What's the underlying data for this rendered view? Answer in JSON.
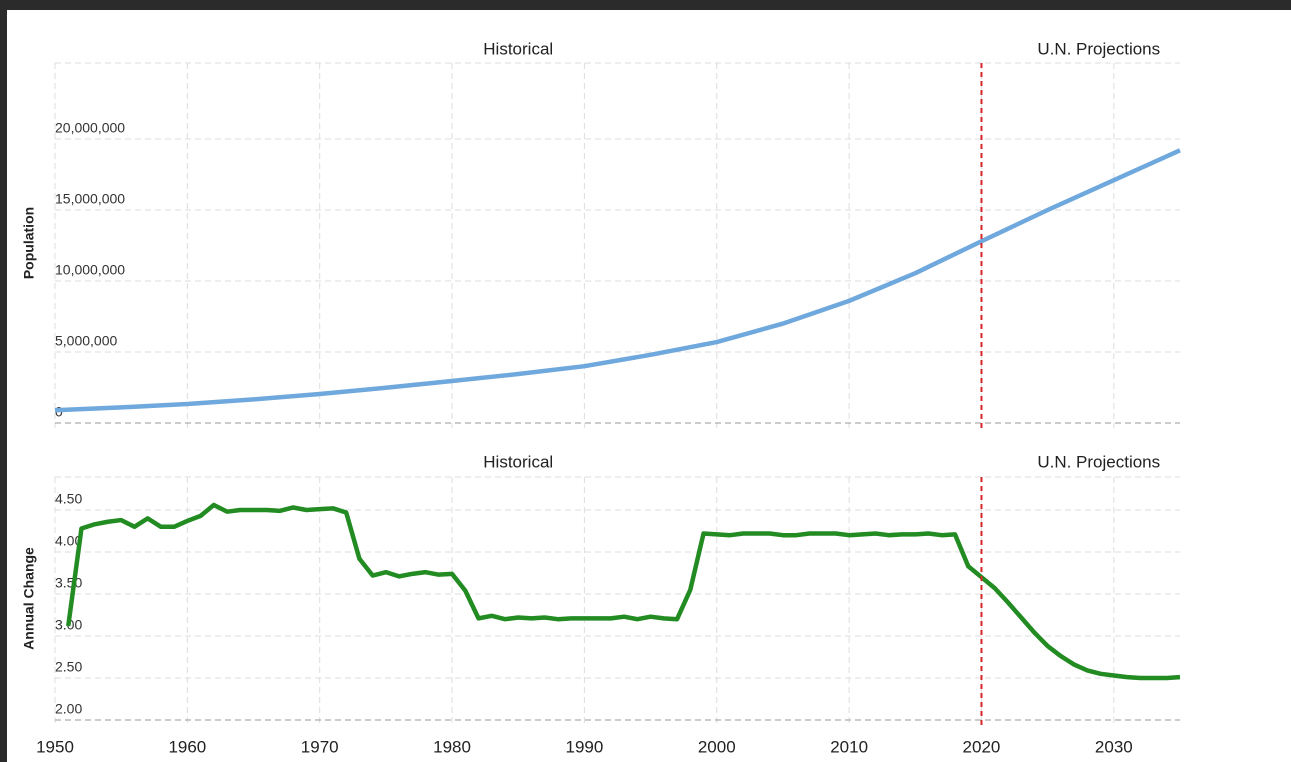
{
  "chart_data": [
    {
      "type": "line",
      "y_label": "Population",
      "annotations": [
        "Historical",
        "U.N. Projections"
      ],
      "divider": 2020,
      "divider_color": "#d62728",
      "x": [
        1950,
        1955,
        1960,
        1965,
        1970,
        1975,
        1980,
        1985,
        1990,
        1995,
        2000,
        2005,
        2010,
        2015,
        2020,
        2025,
        2030,
        2035
      ],
      "series": [
        {
          "name": "Population",
          "color": "#6fa8dc",
          "values": [
            900000,
            1100000,
            1340000,
            1660000,
            2040000,
            2480000,
            2960000,
            3450000,
            4000000,
            4800000,
            5700000,
            7000000,
            8600000,
            10550000,
            12800000,
            15000000,
            17100000,
            19200000
          ]
        }
      ],
      "xlim": [
        1950,
        2035
      ],
      "xticks": [
        1950,
        1960,
        1970,
        1980,
        1990,
        2000,
        2010,
        2020,
        2030
      ],
      "ylim": [
        0,
        25000000
      ],
      "yticks": [
        0,
        {
          "value": 5000000,
          "label": "5,000,000"
        },
        {
          "value": 10000000,
          "label": "10,000,000"
        },
        {
          "value": 15000000,
          "label": "15,000,000"
        },
        {
          "value": 20000000,
          "label": "20,000,000"
        }
      ],
      "grid": true
    },
    {
      "type": "line",
      "y_label": "Annual Change",
      "annotations": [
        "Historical",
        "U.N. Projections"
      ],
      "divider": 2020,
      "divider_color": "#d62728",
      "x": [
        1951,
        1952,
        1953,
        1954,
        1955,
        1956,
        1957,
        1958,
        1959,
        1960,
        1961,
        1962,
        1963,
        1964,
        1965,
        1966,
        1967,
        1968,
        1969,
        1970,
        1971,
        1972,
        1973,
        1974,
        1975,
        1976,
        1977,
        1978,
        1979,
        1980,
        1981,
        1982,
        1983,
        1984,
        1985,
        1986,
        1987,
        1988,
        1989,
        1990,
        1991,
        1992,
        1993,
        1994,
        1995,
        1996,
        1997,
        1998,
        1999,
        2000,
        2001,
        2002,
        2003,
        2004,
        2005,
        2006,
        2007,
        2008,
        2009,
        2010,
        2011,
        2012,
        2013,
        2014,
        2015,
        2016,
        2017,
        2018,
        2019,
        2020,
        2021,
        2022,
        2023,
        2024,
        2025,
        2026,
        2027,
        2028,
        2029,
        2030,
        2031,
        2032,
        2033,
        2034,
        2035
      ],
      "series": [
        {
          "name": "Annual Change",
          "color": "#228b22",
          "values": [
            3.12,
            4.28,
            4.33,
            4.36,
            4.38,
            4.3,
            4.4,
            4.3,
            4.3,
            4.37,
            4.43,
            4.56,
            4.48,
            4.5,
            4.5,
            4.5,
            4.49,
            4.53,
            4.5,
            4.51,
            4.52,
            4.47,
            3.92,
            3.72,
            3.76,
            3.71,
            3.74,
            3.76,
            3.73,
            3.74,
            3.54,
            3.21,
            3.24,
            3.2,
            3.22,
            3.21,
            3.22,
            3.2,
            3.21,
            3.21,
            3.21,
            3.21,
            3.23,
            3.2,
            3.23,
            3.21,
            3.2,
            3.55,
            4.22,
            4.21,
            4.2,
            4.22,
            4.22,
            4.22,
            4.2,
            4.2,
            4.22,
            4.22,
            4.22,
            4.2,
            4.21,
            4.22,
            4.2,
            4.21,
            4.21,
            4.22,
            4.2,
            4.21,
            3.83,
            3.7,
            3.57,
            3.4,
            3.22,
            3.04,
            2.88,
            2.76,
            2.66,
            2.59,
            2.55,
            2.53,
            2.51,
            2.5,
            2.5,
            2.5,
            2.51
          ]
        }
      ],
      "xlim": [
        1950,
        2035
      ],
      "xticks": [
        1950,
        1960,
        1970,
        1980,
        1990,
        2000,
        2010,
        2020,
        2030
      ],
      "ylim": [
        2,
        5
      ],
      "yticks": [
        {
          "value": 2,
          "label": "2.00"
        },
        {
          "value": 2.5,
          "label": "2.50"
        },
        {
          "value": 3,
          "label": "3.00"
        },
        {
          "value": 3.5,
          "label": "3.50"
        },
        {
          "value": 4,
          "label": "4.00"
        },
        {
          "value": 4.5,
          "label": "4.50"
        }
      ],
      "grid": true
    }
  ]
}
